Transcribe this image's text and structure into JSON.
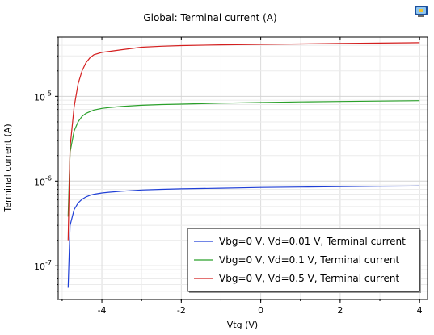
{
  "chart_data": {
    "type": "line",
    "title": "Global: Terminal current (A)",
    "xlabel": "Vtg (V)",
    "ylabel": "Terminal current (A)",
    "x_scale": "linear",
    "y_scale": "log",
    "xlim": [
      -5.1,
      4.2
    ],
    "ylim": [
      4e-08,
      5e-05
    ],
    "x_ticks": [
      -4,
      -2,
      0,
      2,
      4
    ],
    "x_tick_labels": [
      "-4",
      "-2",
      "0",
      "2",
      "4"
    ],
    "y_ticks": [
      1e-07,
      1e-06,
      1e-05
    ],
    "y_tick_mantissa": "10",
    "y_tick_exponents": [
      "-7",
      "-6",
      "-5"
    ],
    "grid": true,
    "legend_position": "bottom-right",
    "series": [
      {
        "name": "Vbg=0 V, Vd=0.01 V, Terminal current",
        "color": "#1f3fd6",
        "x": [
          -4.85,
          -4.8,
          -4.7,
          -4.6,
          -4.5,
          -4.4,
          -4.3,
          -4.2,
          -4.0,
          -3.8,
          -3.5,
          -3.0,
          -2.5,
          -2.0,
          -1.0,
          0.0,
          1.0,
          2.0,
          3.0,
          4.0
        ],
        "y": [
          5.5e-08,
          3e-07,
          4.6e-07,
          5.5e-07,
          6.1e-07,
          6.5e-07,
          6.8e-07,
          7e-07,
          7.25e-07,
          7.4e-07,
          7.6e-07,
          7.85e-07,
          8e-07,
          8.1e-07,
          8.25e-07,
          8.4e-07,
          8.5e-07,
          8.6e-07,
          8.7e-07,
          8.75e-07
        ]
      },
      {
        "name": "Vbg=0 V, Vd=0.1 V, Terminal current",
        "color": "#2aa02a",
        "x": [
          -4.85,
          -4.8,
          -4.7,
          -4.6,
          -4.5,
          -4.4,
          -4.3,
          -4.2,
          -4.0,
          -3.8,
          -3.5,
          -3.0,
          -2.5,
          -2.0,
          -1.0,
          0.0,
          1.0,
          2.0,
          3.0,
          4.0
        ],
        "y": [
          3.8e-07,
          2.2e-06,
          3.9e-06,
          5e-06,
          5.8e-06,
          6.3e-06,
          6.6e-06,
          6.9e-06,
          7.2e-06,
          7.4e-06,
          7.6e-06,
          7.85e-06,
          8e-06,
          8.1e-06,
          8.3e-06,
          8.45e-06,
          8.6e-06,
          8.7e-06,
          8.8e-06,
          8.9e-06
        ]
      },
      {
        "name": "Vbg=0 V, Vd=0.5 V, Terminal current",
        "color": "#d41f1f",
        "x": [
          -4.85,
          -4.8,
          -4.7,
          -4.6,
          -4.5,
          -4.4,
          -4.3,
          -4.2,
          -4.0,
          -3.8,
          -3.5,
          -3.0,
          -2.5,
          -2.0,
          -1.0,
          0.0,
          1.0,
          2.0,
          3.0,
          4.0
        ],
        "y": [
          2e-07,
          2.5e-06,
          7.5e-06,
          1.4e-05,
          2e-05,
          2.5e-05,
          2.85e-05,
          3.1e-05,
          3.3e-05,
          3.4e-05,
          3.55e-05,
          3.8e-05,
          3.9e-05,
          3.97e-05,
          4.05e-05,
          4.1e-05,
          4.15e-05,
          4.2e-05,
          4.25e-05,
          4.3e-05
        ]
      }
    ]
  },
  "icons": {
    "corner_badge": "display-icon"
  }
}
